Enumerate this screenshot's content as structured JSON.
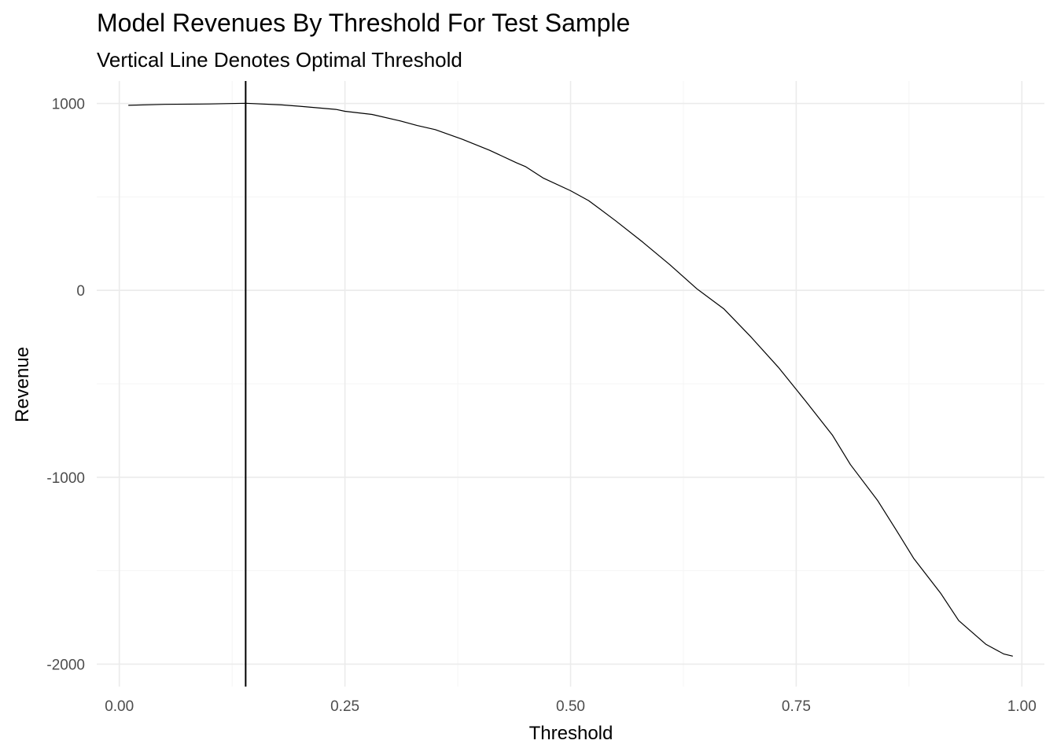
{
  "chart_data": {
    "type": "line",
    "title": "Model Revenues By Threshold For Test Sample",
    "subtitle": "Vertical Line Denotes Optimal Threshold",
    "xlabel": "Threshold",
    "ylabel": "Revenue",
    "xlim": [
      -0.025,
      1.025
    ],
    "ylim": [
      -2120,
      1120
    ],
    "x_ticks": [
      0.0,
      0.25,
      0.5,
      0.75,
      1.0
    ],
    "x_tick_labels": [
      "0.00",
      "0.25",
      "0.50",
      "0.75",
      "1.00"
    ],
    "y_ticks": [
      1000,
      0,
      -1000,
      -2000
    ],
    "y_tick_labels": [
      "1000",
      "0",
      "-1000",
      "-2000"
    ],
    "x_minor_ticks": [
      0.125,
      0.375,
      0.625,
      0.875
    ],
    "y_minor_ticks": [
      500,
      -500,
      -1500
    ],
    "grid": true,
    "optimal_threshold": 0.14,
    "colors": {
      "line": "#000000",
      "grid_major": "#ebebeb",
      "grid_minor": "#f5f5f5",
      "tick_label": "#4d4d4d"
    },
    "series": [
      {
        "x": [
          0.01,
          0.05,
          0.1,
          0.14,
          0.18,
          0.2,
          0.24,
          0.25,
          0.28,
          0.31,
          0.33,
          0.35,
          0.38,
          0.41,
          0.44,
          0.45,
          0.47,
          0.5,
          0.52,
          0.55,
          0.58,
          0.61,
          0.64,
          0.67,
          0.7,
          0.73,
          0.76,
          0.79,
          0.81,
          0.84,
          0.86,
          0.88,
          0.91,
          0.93,
          0.96,
          0.98,
          0.99
        ],
        "y": [
          990,
          995,
          997,
          1001,
          992,
          985,
          968,
          958,
          941,
          908,
          882,
          860,
          808,
          750,
          683,
          662,
          600,
          533,
          480,
          372,
          258,
          137,
          8,
          -100,
          -250,
          -411,
          -590,
          -774,
          -932,
          -1123,
          -1276,
          -1433,
          -1620,
          -1767,
          -1893,
          -1946,
          -1957
        ]
      }
    ]
  }
}
